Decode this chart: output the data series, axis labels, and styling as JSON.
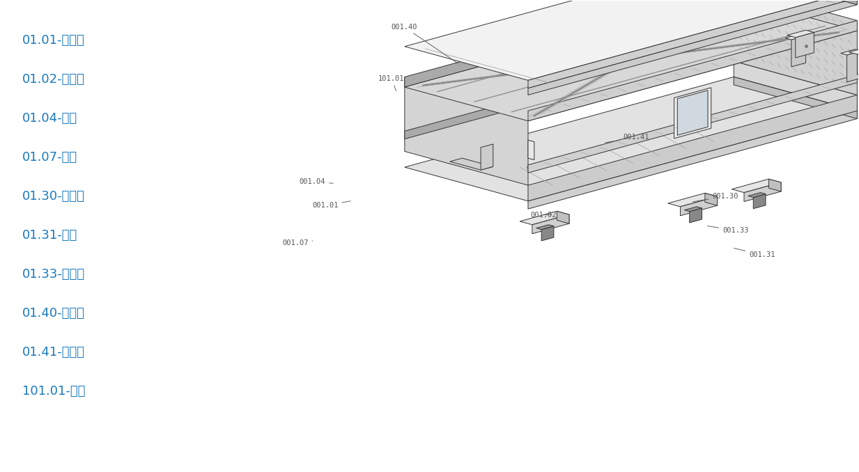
{
  "background_color": "#ffffff",
  "parts_list": [
    "01.01-前横梁",
    "01.02-后横梁",
    "01.04-侧板",
    "01.07-把手",
    "01.30-侧插板",
    "01.31-后脚",
    "01.33-后压板",
    "01.40-上盖板",
    "01.41-下盖板",
    "101.01-底脚"
  ],
  "parts_color": "#1a7abf",
  "parts_fontsize": 13,
  "label_color": "#555555",
  "label_fontsize": 7.5,
  "line_color": "#444444",
  "edge_color": "#333333",
  "figsize": [
    12.33,
    6.78
  ],
  "dpi": 100,
  "ox": 0.615,
  "oy": 0.44,
  "sx": 0.048,
  "sy": 0.024,
  "sz": 0.048
}
